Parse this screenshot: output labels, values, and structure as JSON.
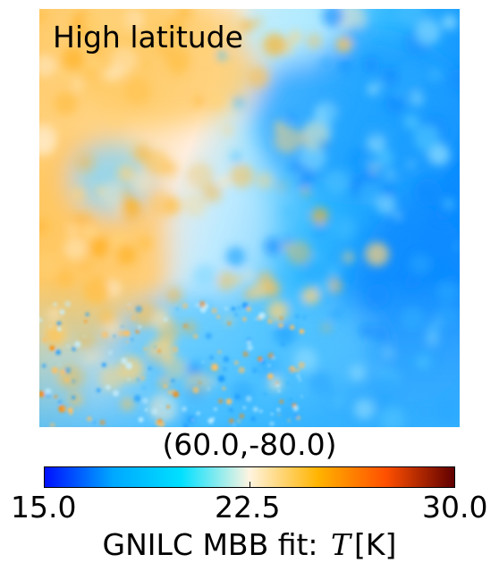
{
  "map": {
    "region_label": "High latitude",
    "coordinates": "(60.0,-80.0)"
  },
  "colorbar": {
    "vmin": 15.0,
    "vmax": 30.0,
    "ticks": [
      "15.0",
      "22.5",
      "30.0"
    ],
    "title_prefix": "GNILC MBB fit: ",
    "title_symbol": "T",
    "title_unit": "[K]",
    "colors": [
      "#0010ff",
      "#00a8ff",
      "#00e0ff",
      "#fff4e0",
      "#ffb400",
      "#ff5000",
      "#600000"
    ]
  }
}
